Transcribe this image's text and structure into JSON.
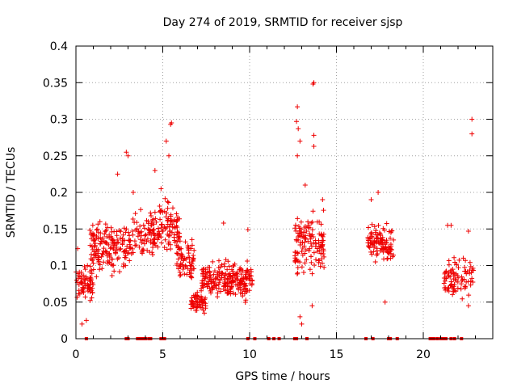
{
  "chart_data": {
    "type": "scatter",
    "title": "Day 274 of 2019, SRMTID for receiver sjsp",
    "xlabel": "GPS time / hours",
    "ylabel": "SRMTID / TECUs",
    "xlim": [
      0,
      24
    ],
    "ylim": [
      0,
      0.4
    ],
    "grid": true,
    "marker": "+",
    "color": "#ee0000",
    "x_ticks": [
      0,
      5,
      10,
      15,
      20
    ],
    "x_tick_labels": [
      "0",
      "5",
      "10",
      "15",
      "20"
    ],
    "y_ticks": [
      0,
      0.05,
      0.1,
      0.15,
      0.2,
      0.25,
      0.3,
      0.35,
      0.4
    ],
    "y_tick_labels": [
      "0",
      "0.05",
      "0.1",
      "0.15",
      "0.2",
      "0.25",
      "0.3",
      "0.35",
      "0.4"
    ],
    "clusters": [
      {
        "x_range": [
          0.0,
          1.0
        ],
        "y_center": 0.075,
        "y_spread": 0.025,
        "count": 70
      },
      {
        "x_range": [
          0.8,
          3.2
        ],
        "y_center": 0.125,
        "y_spread": 0.035,
        "count": 170
      },
      {
        "x_range": [
          3.2,
          4.2
        ],
        "y_center": 0.14,
        "y_spread": 0.03,
        "count": 45
      },
      {
        "x_range": [
          4.2,
          6.0
        ],
        "y_center": 0.15,
        "y_spread": 0.035,
        "count": 130
      },
      {
        "x_range": [
          5.8,
          6.8
        ],
        "y_center": 0.11,
        "y_spread": 0.03,
        "count": 70
      },
      {
        "x_range": [
          6.6,
          7.5
        ],
        "y_center": 0.05,
        "y_spread": 0.015,
        "count": 60
      },
      {
        "x_range": [
          7.2,
          10.2
        ],
        "y_center": 0.08,
        "y_spread": 0.025,
        "count": 230
      },
      {
        "x_range": [
          12.6,
          14.3
        ],
        "y_center": 0.13,
        "y_spread": 0.04,
        "count": 130
      },
      {
        "x_range": [
          16.8,
          18.3
        ],
        "y_center": 0.13,
        "y_spread": 0.025,
        "count": 110
      },
      {
        "x_range": [
          21.2,
          22.9
        ],
        "y_center": 0.085,
        "y_spread": 0.025,
        "count": 90
      }
    ],
    "points": [
      [
        0.1,
        0.123
      ],
      [
        0.35,
        0.02
      ],
      [
        0.6,
        0.025
      ],
      [
        1.3,
        0.145
      ],
      [
        2.4,
        0.225
      ],
      [
        2.9,
        0.255
      ],
      [
        3.0,
        0.25
      ],
      [
        3.3,
        0.2
      ],
      [
        4.55,
        0.23
      ],
      [
        5.2,
        0.27
      ],
      [
        5.45,
        0.293
      ],
      [
        5.5,
        0.295
      ],
      [
        5.35,
        0.25
      ],
      [
        4.9,
        0.205
      ],
      [
        8.5,
        0.158
      ],
      [
        9.9,
        0.149
      ],
      [
        12.75,
        0.317
      ],
      [
        12.7,
        0.297
      ],
      [
        12.8,
        0.287
      ],
      [
        12.9,
        0.27
      ],
      [
        12.75,
        0.25
      ],
      [
        13.2,
        0.21
      ],
      [
        13.65,
        0.348
      ],
      [
        13.7,
        0.35
      ],
      [
        13.7,
        0.278
      ],
      [
        13.7,
        0.263
      ],
      [
        12.9,
        0.03
      ],
      [
        13.0,
        0.02
      ],
      [
        13.6,
        0.045
      ],
      [
        14.2,
        0.19
      ],
      [
        17.4,
        0.2
      ],
      [
        17.0,
        0.19
      ],
      [
        17.8,
        0.05
      ],
      [
        21.4,
        0.155
      ],
      [
        21.6,
        0.155
      ],
      [
        22.6,
        0.147
      ],
      [
        22.8,
        0.3
      ],
      [
        22.8,
        0.28
      ],
      [
        22.6,
        0.045
      ]
    ],
    "zero_points_x": [
      0.6,
      2.9,
      3.0,
      3.55,
      3.65,
      3.75,
      3.85,
      3.9,
      4.0,
      4.2,
      4.3,
      4.9,
      5.0,
      5.1,
      9.9,
      10.3,
      11.1,
      11.4,
      11.7,
      12.6,
      12.7,
      13.3,
      16.7,
      17.1,
      18.0,
      18.1,
      18.5,
      20.4,
      20.5,
      20.6,
      20.8,
      21.0,
      21.1,
      21.2,
      21.3,
      21.6,
      21.8,
      22.2
    ]
  }
}
